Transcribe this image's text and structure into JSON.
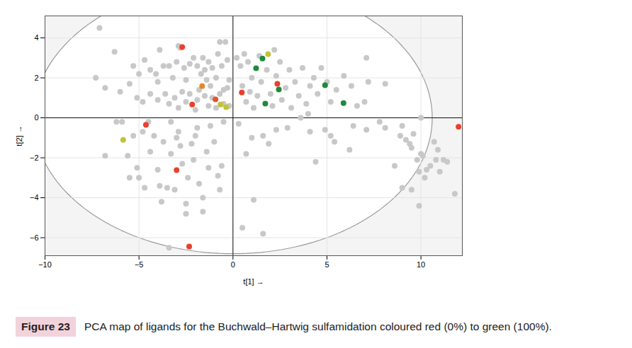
{
  "chart_data": {
    "type": "scatter",
    "caption_label": "Figure 23",
    "caption": "PCA map of ligands for the Buchwald–Hartwig sulfamidation coloured red (0%) to green (100%).",
    "x_label": "t[1]",
    "y_label": "t[2]",
    "xlim": [
      -10,
      12.2
    ],
    "ylim": [
      -6.9,
      5.1
    ],
    "xticks": [
      -10,
      -5,
      0,
      5,
      10
    ],
    "yticks": [
      -6,
      -4,
      -2,
      0,
      2,
      4
    ],
    "grid": true,
    "origin": [
      0,
      0
    ],
    "ellipse": {
      "center": [
        0,
        0
      ],
      "radius_x": 10.6,
      "radius_y": 6.8
    },
    "series": [
      {
        "color": "#c8c8c8",
        "x": [
          -7.1,
          -6.3,
          -5.3,
          -5.0,
          -4.7,
          -4.4,
          -4.1,
          -4.0,
          -4.4,
          -3.9,
          -3.7,
          -3.4,
          -3.2,
          -3.0,
          -2.9,
          -2.8,
          -2.6,
          -2.5,
          -2.3,
          -2.1,
          -1.9,
          -1.7,
          -1.6,
          -1.5,
          -1.4,
          -1.3,
          -1.2,
          -1.1,
          -0.9,
          -0.8,
          -0.7,
          -0.6,
          -0.5,
          -0.4,
          -0.3,
          -0.2,
          -7.3,
          -6.8,
          -6.0,
          -5.5,
          -5.1,
          -4.8,
          -4.0,
          -3.6,
          -3.4,
          -3.1,
          -2.9,
          -2.7,
          -2.5,
          -2.3,
          -2.0,
          -1.9,
          -1.8,
          -1.5,
          -1.3,
          -1.1,
          -0.9,
          -0.7,
          -0.5,
          -0.3,
          -0.2,
          0.2,
          0.4,
          0.6,
          0.8,
          1.0,
          0.9,
          0.7,
          0.5,
          1.1,
          1.3,
          1.5,
          1.8,
          2.0,
          2.1,
          2.3,
          2.5,
          2.6,
          2.8,
          3.0,
          3.1,
          3.3,
          3.5,
          3.7,
          3.9,
          4.1,
          4.3,
          4.5,
          4.7,
          5.0,
          5.2,
          5.5,
          5.9,
          6.3,
          6.6,
          7.1,
          7.2,
          7.0,
          8.1,
          2.2,
          1.4,
          3.6,
          4.0,
          0.3,
          1.0,
          1.6,
          2.3,
          2.9,
          4.1,
          4.9,
          5.2,
          6.2,
          5.4,
          4.4,
          7.1,
          6.4,
          8.1,
          1.1,
          0.5,
          1.6,
          1.9,
          0.7,
          -6.8,
          -6.2,
          -5.9,
          -5.6,
          -5.3,
          -5.1,
          -5.0,
          -4.8,
          -4.7,
          -4.4,
          -4.2,
          -4.0,
          -3.9,
          -3.7,
          -3.5,
          -3.3,
          -3.3,
          -3.1,
          -2.9,
          -2.8,
          -2.7,
          -2.5,
          -2.4,
          -2.2,
          -2.1,
          -1.9,
          -1.8,
          -1.6,
          -1.6,
          -1.3,
          -1.2,
          -1.0,
          -0.8,
          -0.6,
          -0.5,
          -2.5,
          -3.4,
          -3.8,
          -1.4,
          -0.7,
          -2.0,
          -3.0,
          -4.5,
          -5.5,
          8.9,
          9.0,
          9.2,
          9.4,
          9.5,
          9.6,
          9.8,
          9.9,
          10.0,
          10.1,
          10.2,
          10.3,
          10.5,
          10.7,
          10.8,
          10.9,
          11.0,
          11.2,
          11.4,
          11.8,
          8.6,
          9.0,
          9.5,
          9.9,
          7.8,
          10.0
        ],
        "y": [
          4.5,
          3.3,
          2.6,
          2.2,
          2.9,
          2.4,
          2.2,
          1.8,
          1.2,
          3.4,
          2.6,
          2.6,
          2.0,
          2.8,
          3.6,
          3.5,
          2.5,
          1.9,
          2.7,
          3.0,
          2.6,
          2.2,
          3.0,
          2.4,
          1.9,
          2.8,
          1.6,
          2.5,
          2.0,
          3.2,
          3.8,
          2.6,
          1.4,
          3.8,
          2.9,
          1.9,
          2.0,
          1.5,
          1.3,
          1.7,
          1.0,
          0.8,
          0.9,
          1.2,
          0.7,
          1.0,
          0.5,
          1.3,
          0.8,
          1.2,
          0.4,
          0.9,
          1.4,
          1.1,
          0.6,
          1.0,
          0.5,
          1.2,
          0.7,
          1.5,
          0.6,
          3.0,
          2.6,
          3.2,
          2.8,
          2.0,
          1.3,
          0.8,
          1.6,
          0.5,
          1.1,
          1.8,
          2.4,
          1.2,
          0.6,
          2.1,
          2.8,
          0.9,
          1.5,
          2.4,
          0.5,
          1.8,
          1.1,
          2.5,
          0.7,
          1.6,
          2.0,
          1.2,
          2.5,
          1.8,
          0.8,
          1.4,
          2.1,
          1.6,
          0.6,
          3.0,
          1.8,
          0.8,
          1.7,
          3.4,
          3.1,
          0.0,
          0.2,
          -0.3,
          -1.0,
          -0.9,
          -0.6,
          -0.5,
          -0.7,
          -0.6,
          -0.9,
          -1.6,
          -1.2,
          -2.2,
          -0.6,
          -0.4,
          -0.5,
          -4.1,
          -5.5,
          -5.8,
          -1.3,
          -1.8,
          -1.9,
          -0.2,
          -0.2,
          -1.9,
          -0.9,
          -2.5,
          -3.0,
          -0.7,
          -3.5,
          -1.7,
          -0.9,
          -2.6,
          -3.4,
          -1.2,
          -3.5,
          -1.8,
          -0.2,
          -3.6,
          -0.7,
          -1.4,
          -2.3,
          -4.3,
          -3.0,
          -1.3,
          -2.1,
          -0.5,
          -3.3,
          -4.0,
          -4.7,
          -2.5,
          -0.4,
          -1.2,
          -2.9,
          -2.4,
          -0.2,
          -4.8,
          -6.5,
          -4.2,
          -1.7,
          -3.6,
          -0.9,
          -1.0,
          -0.2,
          -3.0,
          -0.9,
          -0.4,
          -1.1,
          -1.3,
          -1.5,
          -0.8,
          -2.1,
          -2.7,
          -1.8,
          -1.9,
          -3.0,
          -2.6,
          -2.4,
          -1.2,
          -2.1,
          -1.6,
          -2.7,
          -2.1,
          -2.2,
          -3.8,
          -2.4,
          -3.5,
          -3.6,
          -4.4,
          -0.2,
          0.0
        ]
      },
      {
        "x": [
          12.0,
          -2.7,
          -1.64,
          -2.17,
          -0.93,
          -0.66,
          -0.36,
          0.47,
          -4.63,
          -5.84,
          -3.0,
          -2.33,
          1.57,
          1.87,
          1.23,
          2.36,
          2.44,
          1.72,
          4.9,
          5.88
        ],
        "y": [
          -0.45,
          3.54,
          1.59,
          0.67,
          0.92,
          0.67,
          0.53,
          1.27,
          -0.35,
          -1.1,
          -2.62,
          -6.44,
          2.97,
          3.19,
          2.48,
          1.7,
          1.42,
          0.71,
          1.63,
          0.74
        ],
        "colors": [
          "#e8412c",
          "#e8412c",
          "#e8862a",
          "#e8412c",
          "#e8552c",
          "#c2c23a",
          "#c2c23a",
          "#e8412c",
          "#e8412c",
          "#c2c23a",
          "#e8412c",
          "#e8412c",
          "#1e8a3c",
          "#c2c23a",
          "#1e8a3c",
          "#e8412c",
          "#1e8a3c",
          "#1e8a3c",
          "#1e8a3c",
          "#1e8a3c"
        ]
      }
    ]
  }
}
